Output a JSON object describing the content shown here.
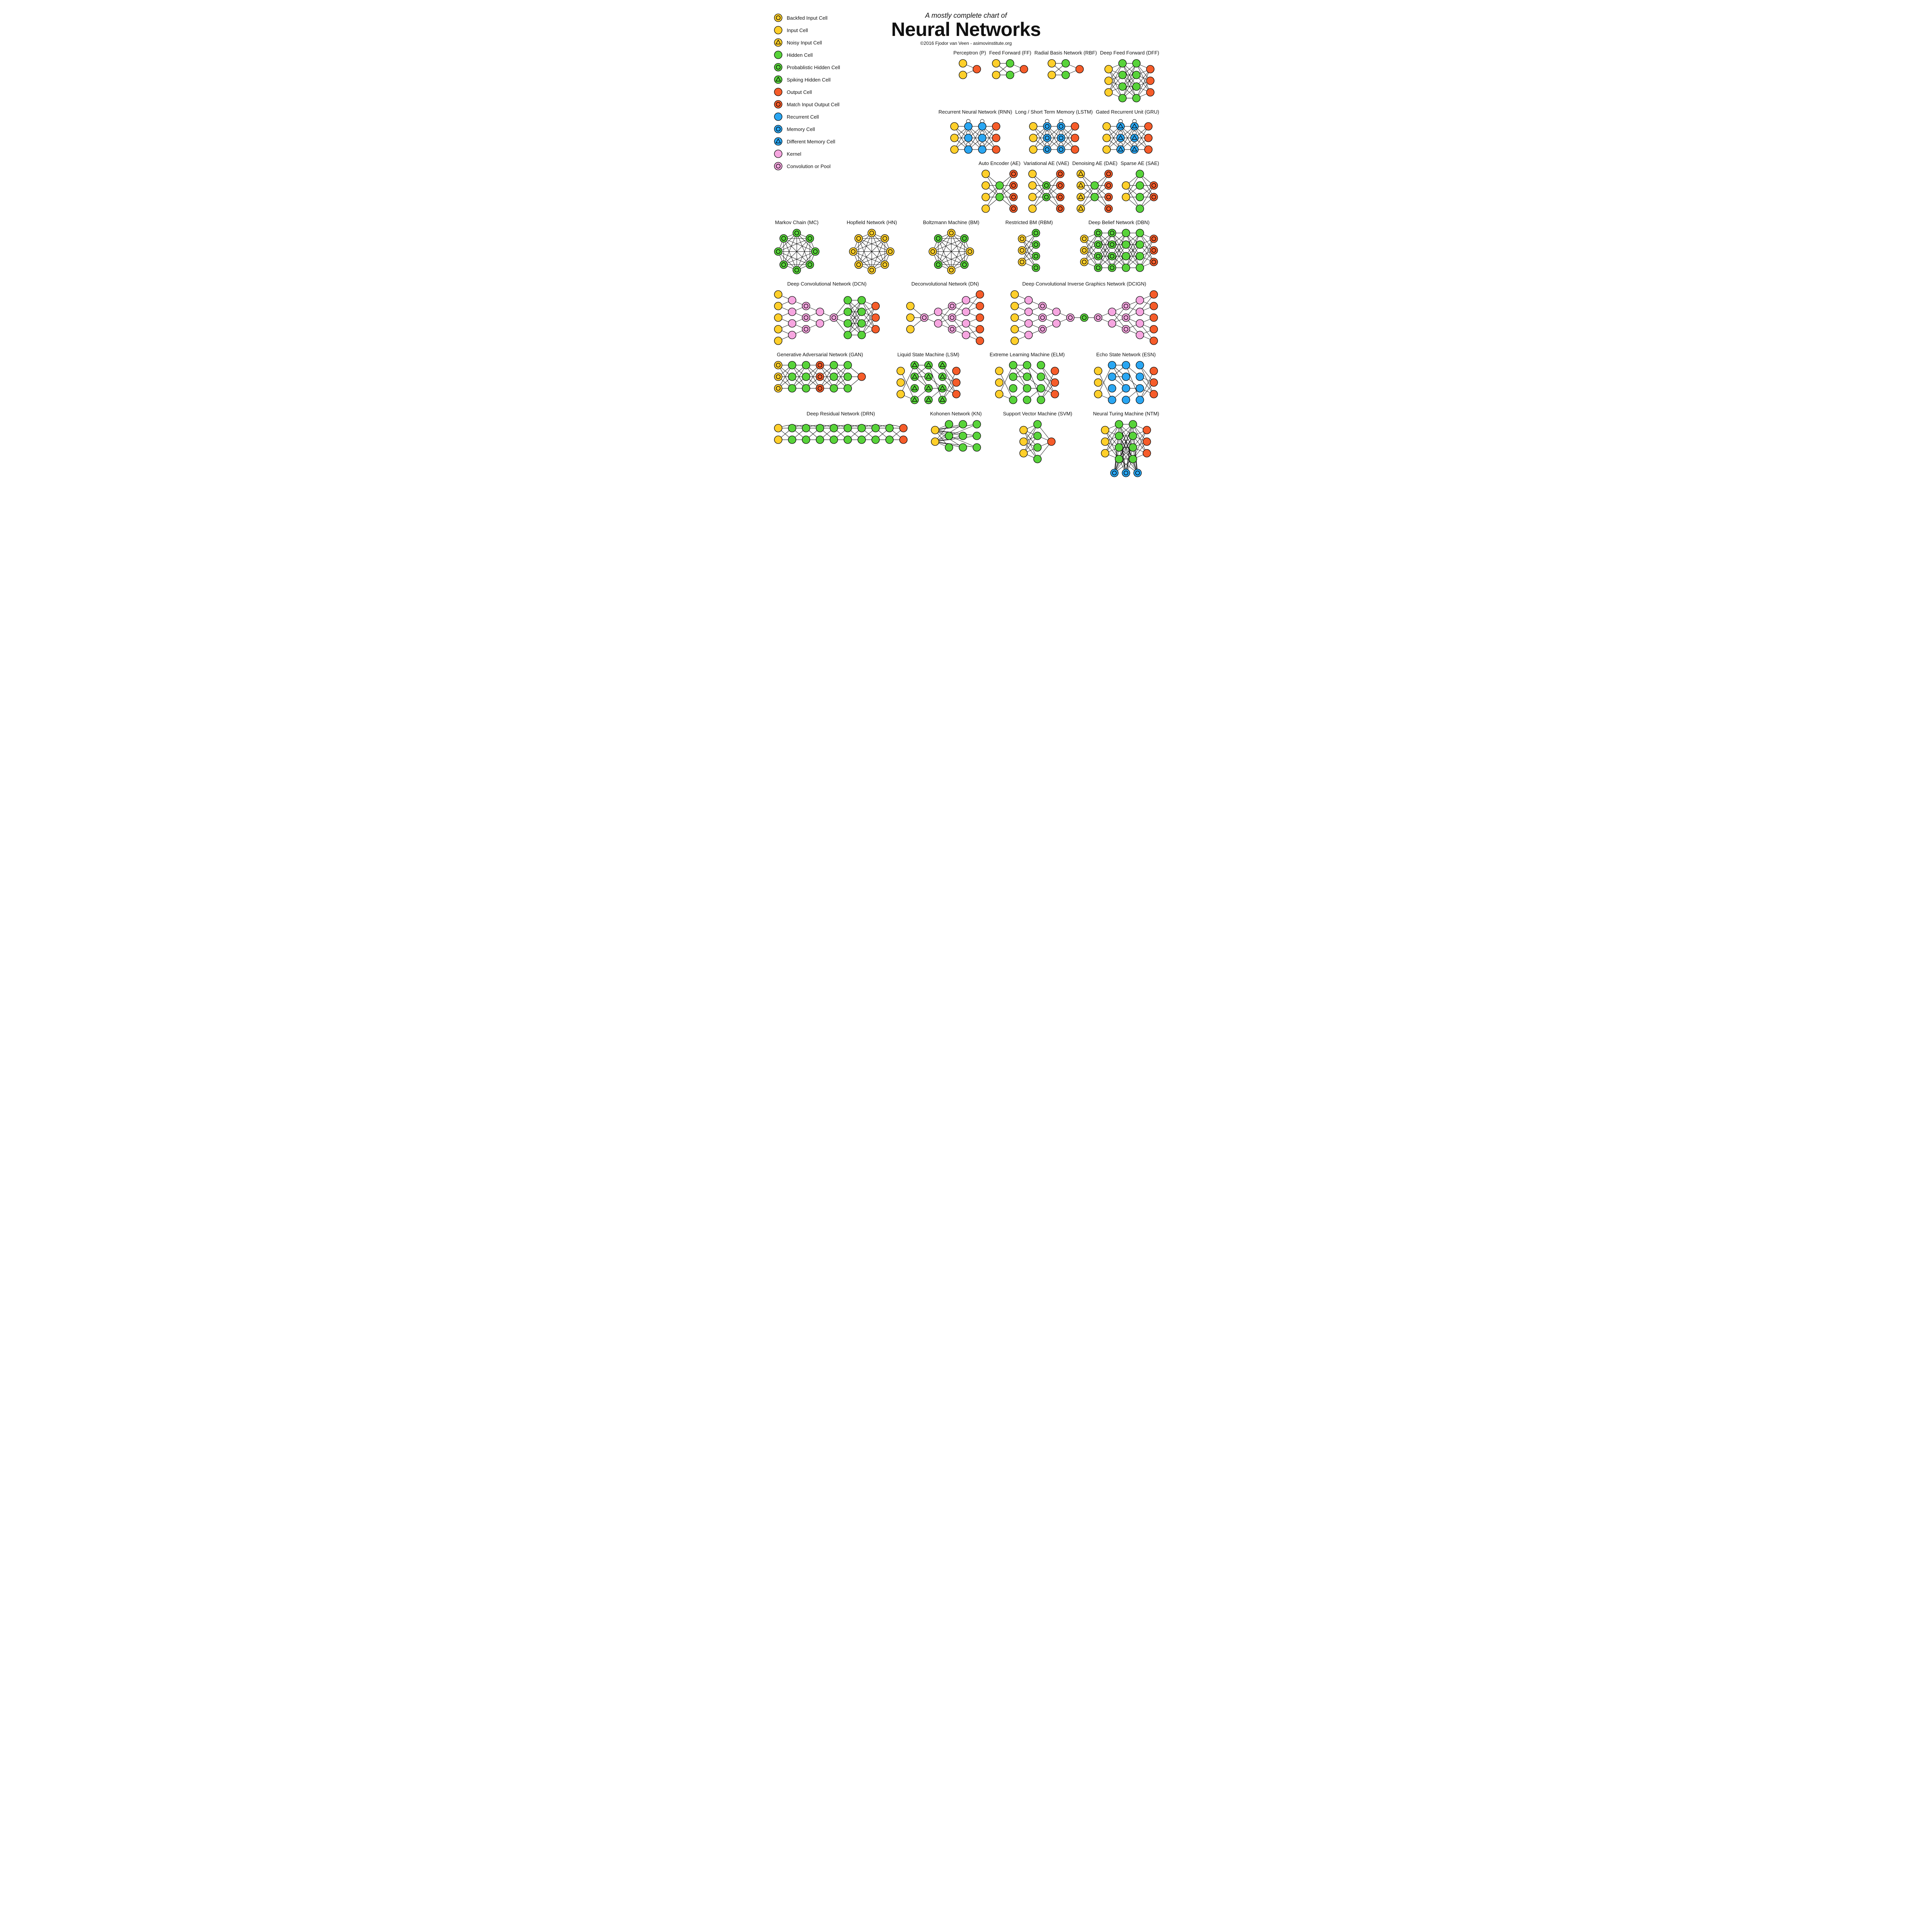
{
  "header": {
    "subtitle": "A mostly complete chart of",
    "title": "Neural Networks",
    "credit": "©2016 Fjodor van Veen - asimovinstitute.org"
  },
  "style": {
    "node_radius": 10,
    "node_stroke_width": 1.3,
    "inner_ring_radius": 5.2,
    "inner_ring_width": 1.4,
    "triangle_size": 6.5,
    "edge_color": "#000000",
    "edge_width": 0.9,
    "self_loop_radius": 5,
    "background": "#ffffff",
    "label_fontsize": 13,
    "title_fontsize": 50,
    "subtitle_fontsize": 18,
    "credit_fontsize": 12,
    "col_spacing": 36,
    "row_spacing": 30
  },
  "cell_types": {
    "backfed_input": {
      "label": "Backfed Input Cell",
      "fill": "#ffcf2b",
      "ring": true
    },
    "input": {
      "label": "Input Cell",
      "fill": "#ffcf2b",
      "ring": false
    },
    "noisy_input": {
      "label": "Noisy Input Cell",
      "fill": "#ffcf2b",
      "tri": true
    },
    "hidden": {
      "label": "Hidden Cell",
      "fill": "#58d33a",
      "ring": false
    },
    "prob_hidden": {
      "label": "Probablistic Hidden Cell",
      "fill": "#58d33a",
      "ring": true
    },
    "spiking_hidden": {
      "label": "Spiking Hidden Cell",
      "fill": "#58d33a",
      "tri": true
    },
    "output": {
      "label": "Output Cell",
      "fill": "#f55c2a",
      "ring": false
    },
    "match_io": {
      "label": "Match Input Output Cell",
      "fill": "#f55c2a",
      "ring": true
    },
    "recurrent": {
      "label": "Recurrent Cell",
      "fill": "#2aa6f2",
      "ring": false
    },
    "memory": {
      "label": "Memory Cell",
      "fill": "#2aa6f2",
      "ring": true
    },
    "diff_memory": {
      "label": "Different Memory Cell",
      "fill": "#2aa6f2",
      "tri": true
    },
    "kernel": {
      "label": "Kernel",
      "fill": "#f6a6e0",
      "ring": false
    },
    "conv_pool": {
      "label": "Convolution or Pool",
      "fill": "#f6a6e0",
      "ring": true
    }
  },
  "legend_order": [
    "backfed_input",
    "input",
    "noisy_input",
    "hidden",
    "prob_hidden",
    "spiking_hidden",
    "output",
    "match_io",
    "recurrent",
    "memory",
    "diff_memory",
    "kernel",
    "conv_pool"
  ],
  "networks": {
    "P": {
      "label": "Perceptron (P)",
      "layers": [
        [
          "input",
          "input"
        ],
        [
          "output"
        ]
      ],
      "conn": "dense"
    },
    "FF": {
      "label": "Feed Forward (FF)",
      "layers": [
        [
          "input",
          "input"
        ],
        [
          "hidden",
          "hidden"
        ],
        [
          "output"
        ]
      ],
      "conn": "dense"
    },
    "RBF": {
      "label": "Radial Basis Network (RBF)",
      "layers": [
        [
          "input",
          "input"
        ],
        [
          "hidden",
          "hidden"
        ],
        [
          "output"
        ]
      ],
      "conn": "dense"
    },
    "DFF": {
      "label": "Deep Feed Forward (DFF)",
      "layers": [
        [
          "input",
          "input",
          "input"
        ],
        [
          "hidden",
          "hidden",
          "hidden",
          "hidden"
        ],
        [
          "hidden",
          "hidden",
          "hidden",
          "hidden"
        ],
        [
          "output",
          "output",
          "output"
        ]
      ],
      "conn": "dense"
    },
    "RNN": {
      "label": "Recurrent Neural Network (RNN)",
      "layers": [
        [
          "input",
          "input",
          "input"
        ],
        [
          "recurrent",
          "recurrent",
          "recurrent"
        ],
        [
          "recurrent",
          "recurrent",
          "recurrent"
        ],
        [
          "output",
          "output",
          "output"
        ]
      ],
      "conn": "dense",
      "self_loop_cols": [
        1,
        2
      ]
    },
    "LSTM": {
      "label": "Long / Short Term Memory (LSTM)",
      "layers": [
        [
          "input",
          "input",
          "input"
        ],
        [
          "memory",
          "memory",
          "memory"
        ],
        [
          "memory",
          "memory",
          "memory"
        ],
        [
          "output",
          "output",
          "output"
        ]
      ],
      "conn": "dense",
      "self_loop_cols": [
        1,
        2
      ]
    },
    "GRU": {
      "label": "Gated Recurrent Unit (GRU)",
      "layers": [
        [
          "input",
          "input",
          "input"
        ],
        [
          "diff_memory",
          "diff_memory",
          "diff_memory"
        ],
        [
          "diff_memory",
          "diff_memory",
          "diff_memory"
        ],
        [
          "output",
          "output",
          "output"
        ]
      ],
      "conn": "dense",
      "self_loop_cols": [
        1,
        2
      ]
    },
    "AE": {
      "label": "Auto Encoder (AE)",
      "layers": [
        [
          "input",
          "input",
          "input",
          "input"
        ],
        [
          "hidden",
          "hidden"
        ],
        [
          "match_io",
          "match_io",
          "match_io",
          "match_io"
        ]
      ],
      "conn": "dense"
    },
    "VAE": {
      "label": "Variational AE (VAE)",
      "layers": [
        [
          "input",
          "input",
          "input",
          "input"
        ],
        [
          "prob_hidden",
          "prob_hidden"
        ],
        [
          "match_io",
          "match_io",
          "match_io",
          "match_io"
        ]
      ],
      "conn": "dense"
    },
    "DAE": {
      "label": "Denoising AE (DAE)",
      "layers": [
        [
          "noisy_input",
          "noisy_input",
          "noisy_input",
          "noisy_input"
        ],
        [
          "hidden",
          "hidden"
        ],
        [
          "match_io",
          "match_io",
          "match_io",
          "match_io"
        ]
      ],
      "conn": "dense"
    },
    "SAE": {
      "label": "Sparse AE (SAE)",
      "layers": [
        [
          "input",
          "input"
        ],
        [
          "hidden",
          "hidden",
          "hidden",
          "hidden"
        ],
        [
          "match_io",
          "match_io"
        ]
      ],
      "conn": "dense"
    },
    "MC": {
      "label": "Markov Chain (MC)",
      "ring_nodes": [
        "prob_hidden",
        "prob_hidden",
        "prob_hidden",
        "prob_hidden",
        "prob_hidden",
        "prob_hidden",
        "prob_hidden",
        "prob_hidden"
      ],
      "conn": "complete"
    },
    "HN": {
      "label": "Hopfield Network (HN)",
      "ring_nodes": [
        "backfed_input",
        "backfed_input",
        "backfed_input",
        "backfed_input",
        "backfed_input",
        "backfed_input",
        "backfed_input",
        "backfed_input"
      ],
      "conn": "complete"
    },
    "BM": {
      "label": "Boltzmann Machine (BM)",
      "ring_nodes": [
        "backfed_input",
        "prob_hidden",
        "backfed_input",
        "prob_hidden",
        "backfed_input",
        "prob_hidden",
        "backfed_input",
        "prob_hidden"
      ],
      "conn": "complete"
    },
    "RBM": {
      "label": "Restricted BM (RBM)",
      "layers": [
        [
          "backfed_input",
          "backfed_input",
          "backfed_input"
        ],
        [
          "prob_hidden",
          "prob_hidden",
          "prob_hidden",
          "prob_hidden"
        ]
      ],
      "conn": "dense"
    },
    "DBN": {
      "label": "Deep Belief Network (DBN)",
      "layers": [
        [
          "backfed_input",
          "backfed_input",
          "backfed_input"
        ],
        [
          "prob_hidden",
          "prob_hidden",
          "prob_hidden",
          "prob_hidden"
        ],
        [
          "prob_hidden",
          "prob_hidden",
          "prob_hidden",
          "prob_hidden"
        ],
        [
          "hidden",
          "hidden",
          "hidden",
          "hidden"
        ],
        [
          "hidden",
          "hidden",
          "hidden",
          "hidden"
        ],
        [
          "match_io",
          "match_io",
          "match_io"
        ]
      ],
      "conn": "dense"
    },
    "DCN": {
      "label": "Deep Convolutional Network (DCN)",
      "layers": [
        [
          "input",
          "input",
          "input",
          "input",
          "input"
        ],
        [
          "kernel",
          "kernel",
          "kernel",
          "kernel"
        ],
        [
          "conv_pool",
          "conv_pool",
          "conv_pool"
        ],
        [
          "kernel",
          "kernel"
        ],
        [
          "conv_pool"
        ],
        [
          "hidden",
          "hidden",
          "hidden",
          "hidden"
        ],
        [
          "hidden",
          "hidden",
          "hidden",
          "hidden"
        ],
        [
          "output",
          "output",
          "output"
        ]
      ],
      "conn": "local_then_dense",
      "dense_from": 4
    },
    "DN": {
      "label": "Deconvolutional Network (DN)",
      "layers": [
        [
          "input",
          "input",
          "input"
        ],
        [
          "conv_pool"
        ],
        [
          "kernel",
          "kernel"
        ],
        [
          "conv_pool",
          "conv_pool",
          "conv_pool"
        ],
        [
          "kernel",
          "kernel",
          "kernel",
          "kernel"
        ],
        [
          "output",
          "output",
          "output",
          "output",
          "output"
        ]
      ],
      "conn": "dense_then_local",
      "dense_to": 1
    },
    "DCIGN": {
      "label": "Deep Convolutional Inverse Graphics Network (DCIGN)",
      "layers": [
        [
          "input",
          "input",
          "input",
          "input",
          "input"
        ],
        [
          "kernel",
          "kernel",
          "kernel",
          "kernel"
        ],
        [
          "conv_pool",
          "conv_pool",
          "conv_pool"
        ],
        [
          "kernel",
          "kernel"
        ],
        [
          "conv_pool"
        ],
        [
          "prob_hidden"
        ],
        [
          "conv_pool"
        ],
        [
          "kernel",
          "kernel"
        ],
        [
          "conv_pool",
          "conv_pool",
          "conv_pool"
        ],
        [
          "kernel",
          "kernel",
          "kernel",
          "kernel"
        ],
        [
          "output",
          "output",
          "output",
          "output",
          "output"
        ]
      ],
      "conn": "dcign"
    },
    "GAN": {
      "label": "Generative Adversarial Network (GAN)",
      "layers": [
        [
          "backfed_input",
          "backfed_input",
          "backfed_input"
        ],
        [
          "hidden",
          "hidden",
          "hidden"
        ],
        [
          "hidden",
          "hidden",
          "hidden"
        ],
        [
          "match_io",
          "match_io",
          "match_io"
        ],
        [
          "hidden",
          "hidden",
          "hidden"
        ],
        [
          "hidden",
          "hidden",
          "hidden"
        ],
        [
          "output"
        ]
      ],
      "conn": "dense"
    },
    "LSM": {
      "label": "Liquid State Machine (LSM)",
      "layers": [
        [
          "input",
          "input",
          "input"
        ],
        [
          "spiking_hidden",
          "spiking_hidden",
          "spiking_hidden",
          "spiking_hidden"
        ],
        [
          "spiking_hidden",
          "spiking_hidden",
          "spiking_hidden",
          "spiking_hidden"
        ],
        [
          "spiking_hidden",
          "spiking_hidden",
          "spiking_hidden",
          "spiking_hidden"
        ],
        [
          "output",
          "output",
          "output"
        ]
      ],
      "conn": "sparse"
    },
    "ELM": {
      "label": "Extreme Learning Machine (ELM)",
      "layers": [
        [
          "input",
          "input",
          "input"
        ],
        [
          "hidden",
          "hidden",
          "hidden",
          "hidden"
        ],
        [
          "hidden",
          "hidden",
          "hidden",
          "hidden"
        ],
        [
          "hidden",
          "hidden",
          "hidden",
          "hidden"
        ],
        [
          "output",
          "output",
          "output"
        ]
      ],
      "conn": "sparse"
    },
    "ESN": {
      "label": "Echo State Network (ESN)",
      "layers": [
        [
          "input",
          "input",
          "input"
        ],
        [
          "recurrent",
          "recurrent",
          "recurrent",
          "recurrent"
        ],
        [
          "recurrent",
          "recurrent",
          "recurrent",
          "recurrent"
        ],
        [
          "recurrent",
          "recurrent",
          "recurrent",
          "recurrent"
        ],
        [
          "output",
          "output",
          "output"
        ]
      ],
      "conn": "sparse"
    },
    "DRN": {
      "label": "Deep Residual Network (DRN)",
      "layers": [
        [
          "input",
          "input"
        ],
        [
          "hidden",
          "hidden"
        ],
        [
          "hidden",
          "hidden"
        ],
        [
          "hidden",
          "hidden"
        ],
        [
          "hidden",
          "hidden"
        ],
        [
          "hidden",
          "hidden"
        ],
        [
          "hidden",
          "hidden"
        ],
        [
          "hidden",
          "hidden"
        ],
        [
          "hidden",
          "hidden"
        ],
        [
          "output",
          "output"
        ]
      ],
      "conn": "dense",
      "skip": true
    },
    "KN": {
      "label": "Kohonen Network (KN)",
      "layers": [
        [
          "input",
          "input"
        ],
        [
          "hidden",
          "hidden",
          "hidden"
        ],
        [
          "hidden",
          "hidden",
          "hidden"
        ],
        [
          "hidden",
          "hidden",
          "hidden"
        ]
      ],
      "conn": "kohonen"
    },
    "SVM": {
      "label": "Support Vector Machine (SVM)",
      "layers": [
        [
          "input",
          "input",
          "input"
        ],
        [
          "hidden",
          "hidden",
          "hidden",
          "hidden"
        ],
        [
          "output"
        ]
      ],
      "conn": "dense"
    },
    "NTM": {
      "label": "Neural Turing Machine (NTM)",
      "layers": [
        [
          "input",
          "input",
          "input"
        ],
        [
          "hidden",
          "hidden",
          "hidden",
          "hidden"
        ],
        [
          "hidden",
          "hidden",
          "hidden",
          "hidden"
        ],
        [
          "output",
          "output",
          "output"
        ]
      ],
      "conn": "dense",
      "ntm_memory": [
        "memory",
        "memory",
        "memory"
      ]
    }
  },
  "rows": [
    {
      "indent": true,
      "nets": [
        "P",
        "FF",
        "RBF",
        "DFF"
      ]
    },
    {
      "indent": true,
      "nets": [
        "RNN",
        "LSTM",
        "GRU"
      ]
    },
    {
      "indent": true,
      "nets": [
        "AE",
        "VAE",
        "DAE",
        "SAE"
      ]
    },
    {
      "indent": false,
      "nets": [
        "MC",
        "HN",
        "BM",
        "RBM",
        "DBN"
      ]
    },
    {
      "indent": false,
      "nets": [
        "DCN",
        "DN",
        "DCIGN"
      ]
    },
    {
      "indent": false,
      "nets": [
        "GAN",
        "LSM",
        "ELM",
        "ESN"
      ]
    },
    {
      "indent": false,
      "nets": [
        "DRN",
        "KN",
        "SVM",
        "NTM"
      ]
    }
  ]
}
